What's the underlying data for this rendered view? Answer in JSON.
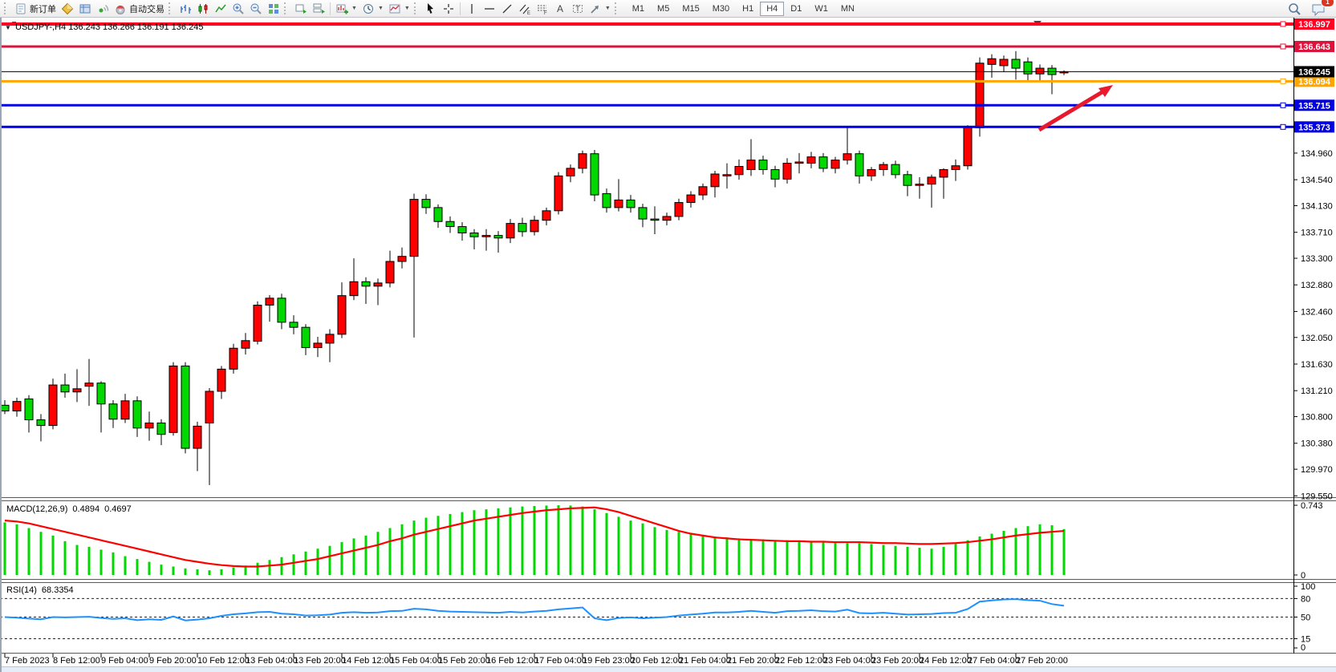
{
  "toolbar": {
    "new_order_label": "新订单",
    "autotrading_label": "自动交易",
    "timeframes": [
      "M1",
      "M5",
      "M15",
      "M30",
      "H1",
      "H4",
      "D1",
      "W1",
      "MN"
    ],
    "active_timeframe": "H4",
    "chat_badge_count": "1",
    "icons": [
      "new-order",
      "market-watch",
      "navigator",
      "signal",
      "autotrading",
      "bar-chart",
      "candlestick-chart",
      "line-chart",
      "zoom-in",
      "zoom-out",
      "tile-windows",
      "cascade-windows",
      "arrange-windows",
      "new-chart",
      "periods",
      "templates",
      "cursor",
      "crosshair",
      "vertical-line",
      "horizontal-line",
      "trendline",
      "equidistant-channel",
      "fibonacci",
      "text",
      "text-label",
      "arrow-shapes",
      "search",
      "chat"
    ]
  },
  "chart": {
    "title_text": "USDJPY-,H4 136.243 136.266 136.191 136.245",
    "symbol": "USDJPY-",
    "period": "H4",
    "open": "136.243",
    "high": "136.266",
    "low": "136.191",
    "close": "136.245",
    "quote": {
      "price": 136.245,
      "label": "136.245",
      "color": "#000000"
    },
    "h_lines": [
      {
        "price": 136.997,
        "label": "136.997",
        "color": "#FF0020",
        "width": 4
      },
      {
        "price": 136.643,
        "label": "136.643",
        "color": "#DC143C",
        "width": 3
      },
      {
        "price": 136.094,
        "label": "136.094",
        "color": "#FFA500",
        "width": 3
      },
      {
        "price": 135.715,
        "label": "135.715",
        "color": "#0000E0",
        "width": 3
      },
      {
        "price": 135.373,
        "label": "135.373",
        "color": "#0000E0",
        "width": 3
      }
    ],
    "price_ticks": [
      134.96,
      134.54,
      134.13,
      133.71,
      133.3,
      132.88,
      132.46,
      132.05,
      131.63,
      131.21,
      130.8,
      130.38,
      129.97,
      129.55
    ],
    "x_labels": [
      "7 Feb 2023",
      "8 Feb 12:00",
      "9 Feb 04:00",
      "9 Feb 20:00",
      "10 Feb 12:00",
      "13 Feb 04:00",
      "13 Feb 20:00",
      "14 Feb 12:00",
      "15 Feb 04:00",
      "15 Feb 20:00",
      "16 Feb 12:00",
      "17 Feb 04:00",
      "19 Feb 23:00",
      "20 Feb 12:00",
      "21 Feb 04:00",
      "21 Feb 20:00",
      "22 Feb 12:00",
      "23 Feb 04:00",
      "23 Feb 20:00",
      "24 Feb 12:00",
      "27 Feb 04:00",
      "27 Feb 20:00"
    ],
    "up_color": "#FF0000",
    "down_color": "#00D800",
    "arrow": {
      "color": "#E8192C"
    },
    "candles": [
      [
        130.98,
        131.06,
        130.84,
        130.89
      ],
      [
        130.89,
        131.1,
        130.8,
        131.04
      ],
      [
        131.08,
        131.14,
        130.55,
        130.75
      ],
      [
        130.75,
        130.84,
        130.41,
        130.66
      ],
      [
        130.66,
        131.4,
        130.6,
        131.3
      ],
      [
        131.3,
        131.48,
        131.1,
        131.19
      ],
      [
        131.19,
        131.55,
        131.03,
        131.24
      ],
      [
        131.28,
        131.71,
        130.97,
        131.33
      ],
      [
        131.33,
        131.36,
        130.55,
        131.0
      ],
      [
        131.0,
        131.06,
        130.62,
        130.76
      ],
      [
        130.76,
        131.16,
        130.7,
        131.05
      ],
      [
        131.05,
        131.12,
        130.48,
        130.62
      ],
      [
        130.62,
        130.88,
        130.42,
        130.7
      ],
      [
        130.7,
        130.76,
        130.35,
        130.52
      ],
      [
        130.55,
        131.66,
        130.5,
        131.6
      ],
      [
        131.6,
        131.66,
        130.22,
        130.3
      ],
      [
        130.3,
        130.72,
        129.94,
        130.65
      ],
      [
        130.7,
        131.25,
        129.72,
        131.2
      ],
      [
        131.2,
        131.6,
        131.08,
        131.55
      ],
      [
        131.55,
        131.95,
        131.48,
        131.88
      ],
      [
        131.88,
        132.12,
        131.78,
        132.0
      ],
      [
        131.99,
        132.62,
        131.94,
        132.56
      ],
      [
        132.56,
        132.72,
        132.3,
        132.67
      ],
      [
        132.67,
        132.74,
        132.18,
        132.29
      ],
      [
        132.29,
        132.4,
        132.1,
        132.21
      ],
      [
        132.21,
        132.26,
        131.77,
        131.89
      ],
      [
        131.89,
        132.06,
        131.74,
        131.96
      ],
      [
        131.96,
        132.18,
        131.66,
        132.1
      ],
      [
        132.1,
        132.92,
        132.04,
        132.71
      ],
      [
        132.71,
        133.3,
        132.64,
        132.93
      ],
      [
        132.93,
        133.0,
        132.58,
        132.86
      ],
      [
        132.86,
        132.98,
        132.56,
        132.91
      ],
      [
        132.91,
        133.42,
        132.84,
        133.25
      ],
      [
        133.25,
        133.47,
        133.14,
        133.33
      ],
      [
        133.33,
        134.32,
        132.05,
        134.23
      ],
      [
        134.23,
        134.31,
        134.0,
        134.1
      ],
      [
        134.1,
        134.15,
        133.78,
        133.88
      ],
      [
        133.88,
        133.96,
        133.7,
        133.8
      ],
      [
        133.8,
        133.87,
        133.58,
        133.7
      ],
      [
        133.7,
        133.76,
        133.44,
        133.64
      ],
      [
        133.64,
        133.76,
        133.42,
        133.66
      ],
      [
        133.66,
        133.73,
        133.39,
        133.62
      ],
      [
        133.62,
        133.92,
        133.54,
        133.85
      ],
      [
        133.85,
        133.94,
        133.64,
        133.72
      ],
      [
        133.72,
        133.97,
        133.66,
        133.9
      ],
      [
        133.9,
        134.1,
        133.82,
        134.05
      ],
      [
        134.05,
        134.66,
        133.99,
        134.6
      ],
      [
        134.6,
        134.78,
        134.5,
        134.72
      ],
      [
        134.72,
        135.0,
        134.64,
        134.95
      ],
      [
        134.95,
        135.01,
        134.2,
        134.3
      ],
      [
        134.32,
        134.4,
        134.02,
        134.1
      ],
      [
        134.1,
        134.55,
        134.04,
        134.22
      ],
      [
        134.22,
        134.3,
        134.02,
        134.1
      ],
      [
        134.1,
        134.16,
        133.79,
        133.92
      ],
      [
        133.92,
        134.12,
        133.68,
        133.9
      ],
      [
        133.9,
        134.02,
        133.82,
        133.96
      ],
      [
        133.96,
        134.24,
        133.9,
        134.18
      ],
      [
        134.18,
        134.36,
        134.1,
        134.3
      ],
      [
        134.3,
        134.48,
        134.22,
        134.43
      ],
      [
        134.43,
        134.68,
        134.26,
        134.63
      ],
      [
        134.6,
        134.8,
        134.4,
        134.62
      ],
      [
        134.62,
        134.86,
        134.54,
        134.75
      ],
      [
        134.7,
        135.18,
        134.6,
        134.85
      ],
      [
        134.85,
        134.92,
        134.62,
        134.7
      ],
      [
        134.7,
        134.76,
        134.42,
        134.55
      ],
      [
        134.55,
        134.88,
        134.48,
        134.8
      ],
      [
        134.8,
        134.96,
        134.64,
        134.82
      ],
      [
        134.8,
        134.98,
        134.72,
        134.9
      ],
      [
        134.9,
        134.96,
        134.66,
        134.72
      ],
      [
        134.72,
        134.9,
        134.64,
        134.85
      ],
      [
        134.85,
        135.37,
        134.78,
        134.95
      ],
      [
        134.95,
        135.0,
        134.48,
        134.6
      ],
      [
        134.6,
        134.74,
        134.52,
        134.7
      ],
      [
        134.7,
        134.82,
        134.6,
        134.78
      ],
      [
        134.78,
        134.84,
        134.56,
        134.62
      ],
      [
        134.62,
        134.68,
        134.28,
        134.45
      ],
      [
        134.45,
        134.58,
        134.24,
        134.47
      ],
      [
        134.47,
        134.62,
        134.1,
        134.58
      ],
      [
        134.58,
        134.72,
        134.24,
        134.7
      ],
      [
        134.7,
        134.86,
        134.52,
        134.76
      ],
      [
        134.76,
        135.4,
        134.7,
        135.37
      ],
      [
        135.36,
        136.47,
        135.22,
        136.38
      ],
      [
        136.36,
        136.52,
        136.15,
        136.45
      ],
      [
        136.34,
        136.5,
        136.24,
        136.44
      ],
      [
        136.44,
        136.57,
        136.12,
        136.3
      ],
      [
        136.4,
        136.47,
        136.1,
        136.21
      ],
      [
        136.21,
        136.36,
        136.08,
        136.3
      ],
      [
        136.3,
        136.35,
        135.89,
        136.2
      ],
      [
        136.24,
        136.266,
        136.191,
        136.245
      ]
    ]
  },
  "macd": {
    "label": "MACD(12,26,9)",
    "value1": "0.4894",
    "value2": "0.4697",
    "scale_top": "0.743",
    "scale_bottom": "0",
    "hist_color": "#00D800",
    "signal_color": "#FF0000",
    "histogram": [
      0.56,
      0.54,
      0.5,
      0.46,
      0.42,
      0.36,
      0.32,
      0.3,
      0.27,
      0.24,
      0.2,
      0.17,
      0.14,
      0.11,
      0.09,
      0.07,
      0.06,
      0.05,
      0.06,
      0.08,
      0.1,
      0.13,
      0.16,
      0.19,
      0.22,
      0.25,
      0.28,
      0.31,
      0.35,
      0.39,
      0.42,
      0.46,
      0.5,
      0.54,
      0.58,
      0.61,
      0.63,
      0.65,
      0.67,
      0.69,
      0.7,
      0.71,
      0.72,
      0.73,
      0.735,
      0.74,
      0.743,
      0.74,
      0.73,
      0.7,
      0.66,
      0.62,
      0.58,
      0.55,
      0.51,
      0.48,
      0.46,
      0.44,
      0.42,
      0.41,
      0.4,
      0.39,
      0.38,
      0.38,
      0.37,
      0.37,
      0.36,
      0.36,
      0.35,
      0.35,
      0.34,
      0.34,
      0.33,
      0.32,
      0.31,
      0.3,
      0.29,
      0.28,
      0.3,
      0.33,
      0.37,
      0.41,
      0.44,
      0.47,
      0.5,
      0.52,
      0.54,
      0.53,
      0.4894
    ],
    "signal": [
      0.58,
      0.57,
      0.55,
      0.52,
      0.49,
      0.46,
      0.43,
      0.4,
      0.37,
      0.34,
      0.31,
      0.28,
      0.25,
      0.22,
      0.19,
      0.16,
      0.14,
      0.12,
      0.105,
      0.095,
      0.09,
      0.09,
      0.1,
      0.11,
      0.13,
      0.15,
      0.17,
      0.2,
      0.23,
      0.26,
      0.29,
      0.32,
      0.36,
      0.39,
      0.43,
      0.46,
      0.49,
      0.52,
      0.55,
      0.58,
      0.6,
      0.62,
      0.64,
      0.66,
      0.675,
      0.69,
      0.7,
      0.71,
      0.715,
      0.72,
      0.7,
      0.67,
      0.63,
      0.59,
      0.55,
      0.51,
      0.47,
      0.44,
      0.42,
      0.4,
      0.39,
      0.38,
      0.375,
      0.37,
      0.365,
      0.36,
      0.36,
      0.355,
      0.355,
      0.35,
      0.35,
      0.35,
      0.345,
      0.34,
      0.34,
      0.335,
      0.33,
      0.33,
      0.335,
      0.34,
      0.35,
      0.365,
      0.38,
      0.4,
      0.42,
      0.435,
      0.45,
      0.46,
      0.4697
    ]
  },
  "rsi": {
    "label": "RSI(14)",
    "value": "68.3354",
    "color": "#1E90FF",
    "scale": [
      "100",
      "80",
      "50",
      "15",
      "0"
    ],
    "dashed_levels": [
      80,
      50,
      15
    ],
    "series": [
      50,
      49,
      47.5,
      46.5,
      50,
      49.5,
      50,
      50.5,
      48.5,
      47,
      48,
      45,
      46.5,
      45.5,
      51,
      44.5,
      46,
      48,
      52,
      54.5,
      56,
      58,
      58.5,
      55.5,
      54.5,
      52.5,
      53,
      54,
      57,
      58,
      57,
      57.5,
      59.5,
      60,
      63.5,
      62.5,
      60,
      59,
      58.5,
      58,
      57.5,
      57,
      58.5,
      57.5,
      59,
      60,
      62.5,
      64,
      65.5,
      48,
      45,
      48.5,
      49.5,
      48,
      49,
      50,
      52.5,
      54,
      55.5,
      57.5,
      57.5,
      58.5,
      60,
      58.5,
      57,
      59.5,
      60,
      61,
      59.5,
      59,
      62,
      56.5,
      56,
      57,
      55.5,
      54,
      54.5,
      55,
      56.5,
      57,
      63,
      75,
      77,
      78.5,
      79,
      77.5,
      76.5,
      71,
      68.34
    ]
  }
}
